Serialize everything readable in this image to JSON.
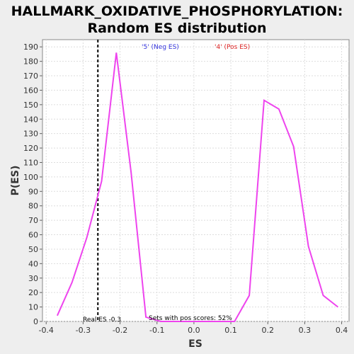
{
  "chart_data": {
    "type": "line",
    "title_line1": "HALLMARK_OXIDATIVE_PHOSPHORYLATION:",
    "title_line2": "Random ES distribution",
    "xlabel": "ES",
    "ylabel": "P(ES)",
    "xlim": [
      -0.41,
      0.42
    ],
    "ylim": [
      0,
      195
    ],
    "x_ticks": [
      -0.4,
      -0.3,
      -0.2,
      -0.1,
      0.0,
      0.1,
      0.2,
      0.3,
      0.4
    ],
    "x_tick_labels": [
      "-0.4",
      "-0.3",
      "-0.2",
      "-0.1",
      "0.0",
      "0.1",
      "0.2",
      "0.3",
      "0.4"
    ],
    "y_ticks": [
      0,
      10,
      20,
      30,
      40,
      50,
      60,
      70,
      80,
      90,
      100,
      110,
      120,
      130,
      140,
      150,
      160,
      170,
      180,
      190
    ],
    "grid": true,
    "series": [
      {
        "color": "#ee44ee",
        "x": [
          -0.37,
          -0.33,
          -0.29,
          -0.25,
          -0.21,
          -0.17,
          -0.13,
          -0.09,
          -0.05,
          -0.01,
          0.03,
          0.07,
          0.11,
          0.15,
          0.19,
          0.23,
          0.27,
          0.31,
          0.35,
          0.39
        ],
        "y": [
          4,
          27,
          58,
          97,
          186,
          103,
          3,
          0,
          0,
          0,
          0,
          0,
          0,
          18,
          153,
          147,
          121,
          52,
          18,
          10
        ]
      }
    ],
    "real_es": {
      "x": -0.26,
      "label": "Real ES -0.3"
    },
    "annotations": {
      "neg_label": "'5' (Neg ES)",
      "neg_color": "#3333dd",
      "pos_label": "'4' (Pos ES)",
      "pos_color": "#dd2222",
      "pos_sets_label": "Sets with pos scores: 52%"
    }
  }
}
